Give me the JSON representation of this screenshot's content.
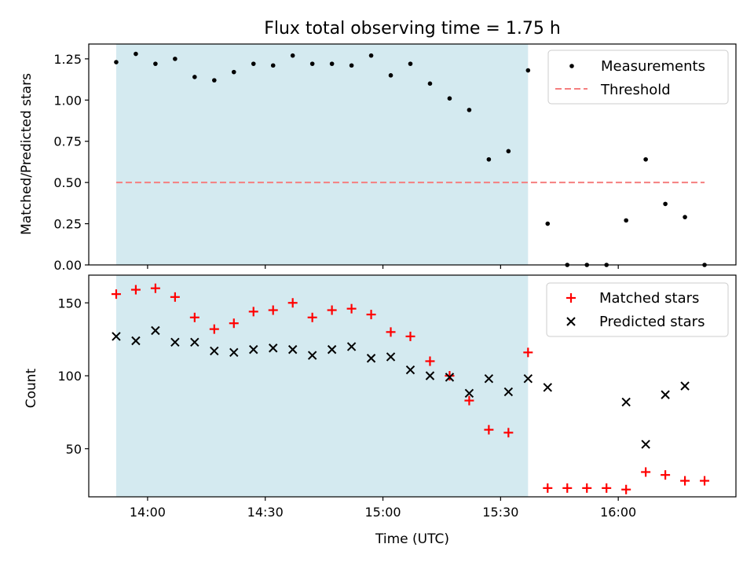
{
  "chart_data": [
    {
      "type": "scatter",
      "title": "Flux total observing time = 1.75 h",
      "xlabel": "",
      "ylabel": "Matched/Predicted stars",
      "ylim": [
        0,
        1.34
      ],
      "yticks": [
        0.0,
        0.25,
        0.5,
        0.75,
        1.0,
        1.25
      ],
      "ytick_labels": [
        "0.00",
        "0.25",
        "0.50",
        "0.75",
        "1.00",
        "1.25"
      ],
      "xlim_minutes": [
        825,
        990
      ],
      "xticks_minutes": [
        840,
        870,
        900,
        930,
        960
      ],
      "shaded_range_minutes": [
        832,
        937
      ],
      "shaded_color": "#d4eaf0",
      "legend": [
        {
          "label": "Measurements",
          "marker": "dot",
          "color": "#000000"
        },
        {
          "label": "Threshold",
          "marker": "dashed-line",
          "color": "#f57f7f"
        }
      ],
      "threshold": {
        "value": 0.5,
        "x_range_minutes": [
          832,
          982
        ],
        "color": "#f57f7f"
      },
      "series": [
        {
          "name": "Measurements",
          "color": "#000000",
          "x": [
            832,
            837,
            842,
            847,
            852,
            857,
            862,
            867,
            872,
            877,
            882,
            887,
            892,
            897,
            902,
            907,
            912,
            917,
            922,
            927,
            932,
            937,
            942,
            947,
            952,
            957,
            962,
            967,
            972,
            977,
            982
          ],
          "y": [
            1.23,
            1.28,
            1.22,
            1.25,
            1.14,
            1.12,
            1.17,
            1.22,
            1.21,
            1.27,
            1.22,
            1.22,
            1.21,
            1.27,
            1.15,
            1.22,
            1.1,
            1.01,
            0.94,
            0.64,
            0.69,
            1.18,
            0.25,
            0.0,
            0.0,
            0.0,
            0.27,
            0.64,
            0.37,
            0.29,
            0.0
          ]
        }
      ]
    },
    {
      "type": "scatter",
      "title": "",
      "xlabel": "Time (UTC)",
      "ylabel": "Count",
      "ylim": [
        17,
        169
      ],
      "yticks": [
        50,
        100,
        150
      ],
      "ytick_labels": [
        "50",
        "100",
        "150"
      ],
      "xlim_minutes": [
        825,
        990
      ],
      "xticks_minutes": [
        840,
        870,
        900,
        930,
        960
      ],
      "xtick_labels": [
        "14:00",
        "14:30",
        "15:00",
        "15:30",
        "16:00"
      ],
      "shaded_range_minutes": [
        832,
        937
      ],
      "shaded_color": "#d4eaf0",
      "legend": [
        {
          "label": "Matched stars",
          "marker": "plus",
          "color": "#ff0000"
        },
        {
          "label": "Predicted stars",
          "marker": "x",
          "color": "#000000"
        }
      ],
      "series": [
        {
          "name": "Matched stars",
          "color": "#ff0000",
          "x": [
            832,
            837,
            842,
            847,
            852,
            857,
            862,
            867,
            872,
            877,
            882,
            887,
            892,
            897,
            902,
            907,
            912,
            917,
            922,
            927,
            932,
            937,
            942,
            947,
            952,
            957,
            962,
            967,
            972,
            977,
            982
          ],
          "y": [
            156,
            159,
            160,
            154,
            140,
            132,
            136,
            144,
            145,
            150,
            140,
            145,
            146,
            142,
            130,
            127,
            110,
            100,
            83,
            63,
            61,
            116,
            23,
            23,
            23,
            23,
            22,
            34,
            32,
            28,
            28
          ]
        },
        {
          "name": "Predicted stars",
          "color": "#000000",
          "x": [
            832,
            837,
            842,
            847,
            852,
            857,
            862,
            867,
            872,
            877,
            882,
            887,
            892,
            897,
            902,
            907,
            912,
            917,
            922,
            927,
            932,
            937,
            942,
            962,
            967,
            972,
            977
          ],
          "y": [
            127,
            124,
            131,
            123,
            123,
            117,
            116,
            118,
            119,
            118,
            114,
            118,
            120,
            112,
            113,
            104,
            100,
            99,
            88,
            98,
            89,
            98,
            92,
            82,
            53,
            87,
            93
          ]
        }
      ]
    }
  ]
}
